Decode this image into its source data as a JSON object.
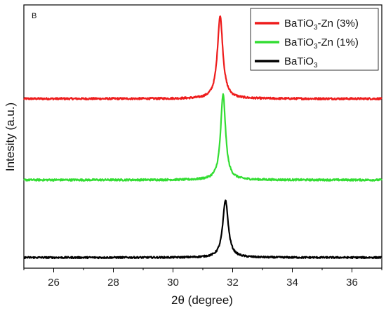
{
  "chart_data": {
    "type": "line",
    "panel_label": "B",
    "xlabel": "2θ (degree)",
    "ylabel": "Intesity (a.u.)",
    "xlim": [
      25,
      37
    ],
    "x_ticks": [
      "26",
      "28",
      "30",
      "32",
      "34",
      "36"
    ],
    "y_ticks": [],
    "grid": false,
    "legend_position": "top-right",
    "series": [
      {
        "name": "BaTiO3-Zn (3%)",
        "name_base": "BaTiO",
        "name_sub": "3",
        "name_rest": "-Zn (3%)",
        "color": "#ee1c1c",
        "baseline": 0.555,
        "peak_x": 31.58,
        "peak_height": 0.295,
        "peak_width": 0.11,
        "noise": 0.0035
      },
      {
        "name": "BaTiO3-Zn (1%)",
        "name_base": "BaTiO",
        "name_sub": "3",
        "name_rest": "-Zn (1%)",
        "color": "#33dd33",
        "baseline": 0.265,
        "peak_x": 31.68,
        "peak_height": 0.305,
        "peak_width": 0.1,
        "noise": 0.0035
      },
      {
        "name": "BaTiO3",
        "name_base": "BaTiO",
        "name_sub": "3",
        "name_rest": "",
        "color": "#000000",
        "baseline": -0.012,
        "peak_x": 31.76,
        "peak_height": 0.205,
        "peak_width": 0.11,
        "noise": 0.003
      }
    ],
    "ylim": [
      -0.05,
      0.89
    ]
  }
}
